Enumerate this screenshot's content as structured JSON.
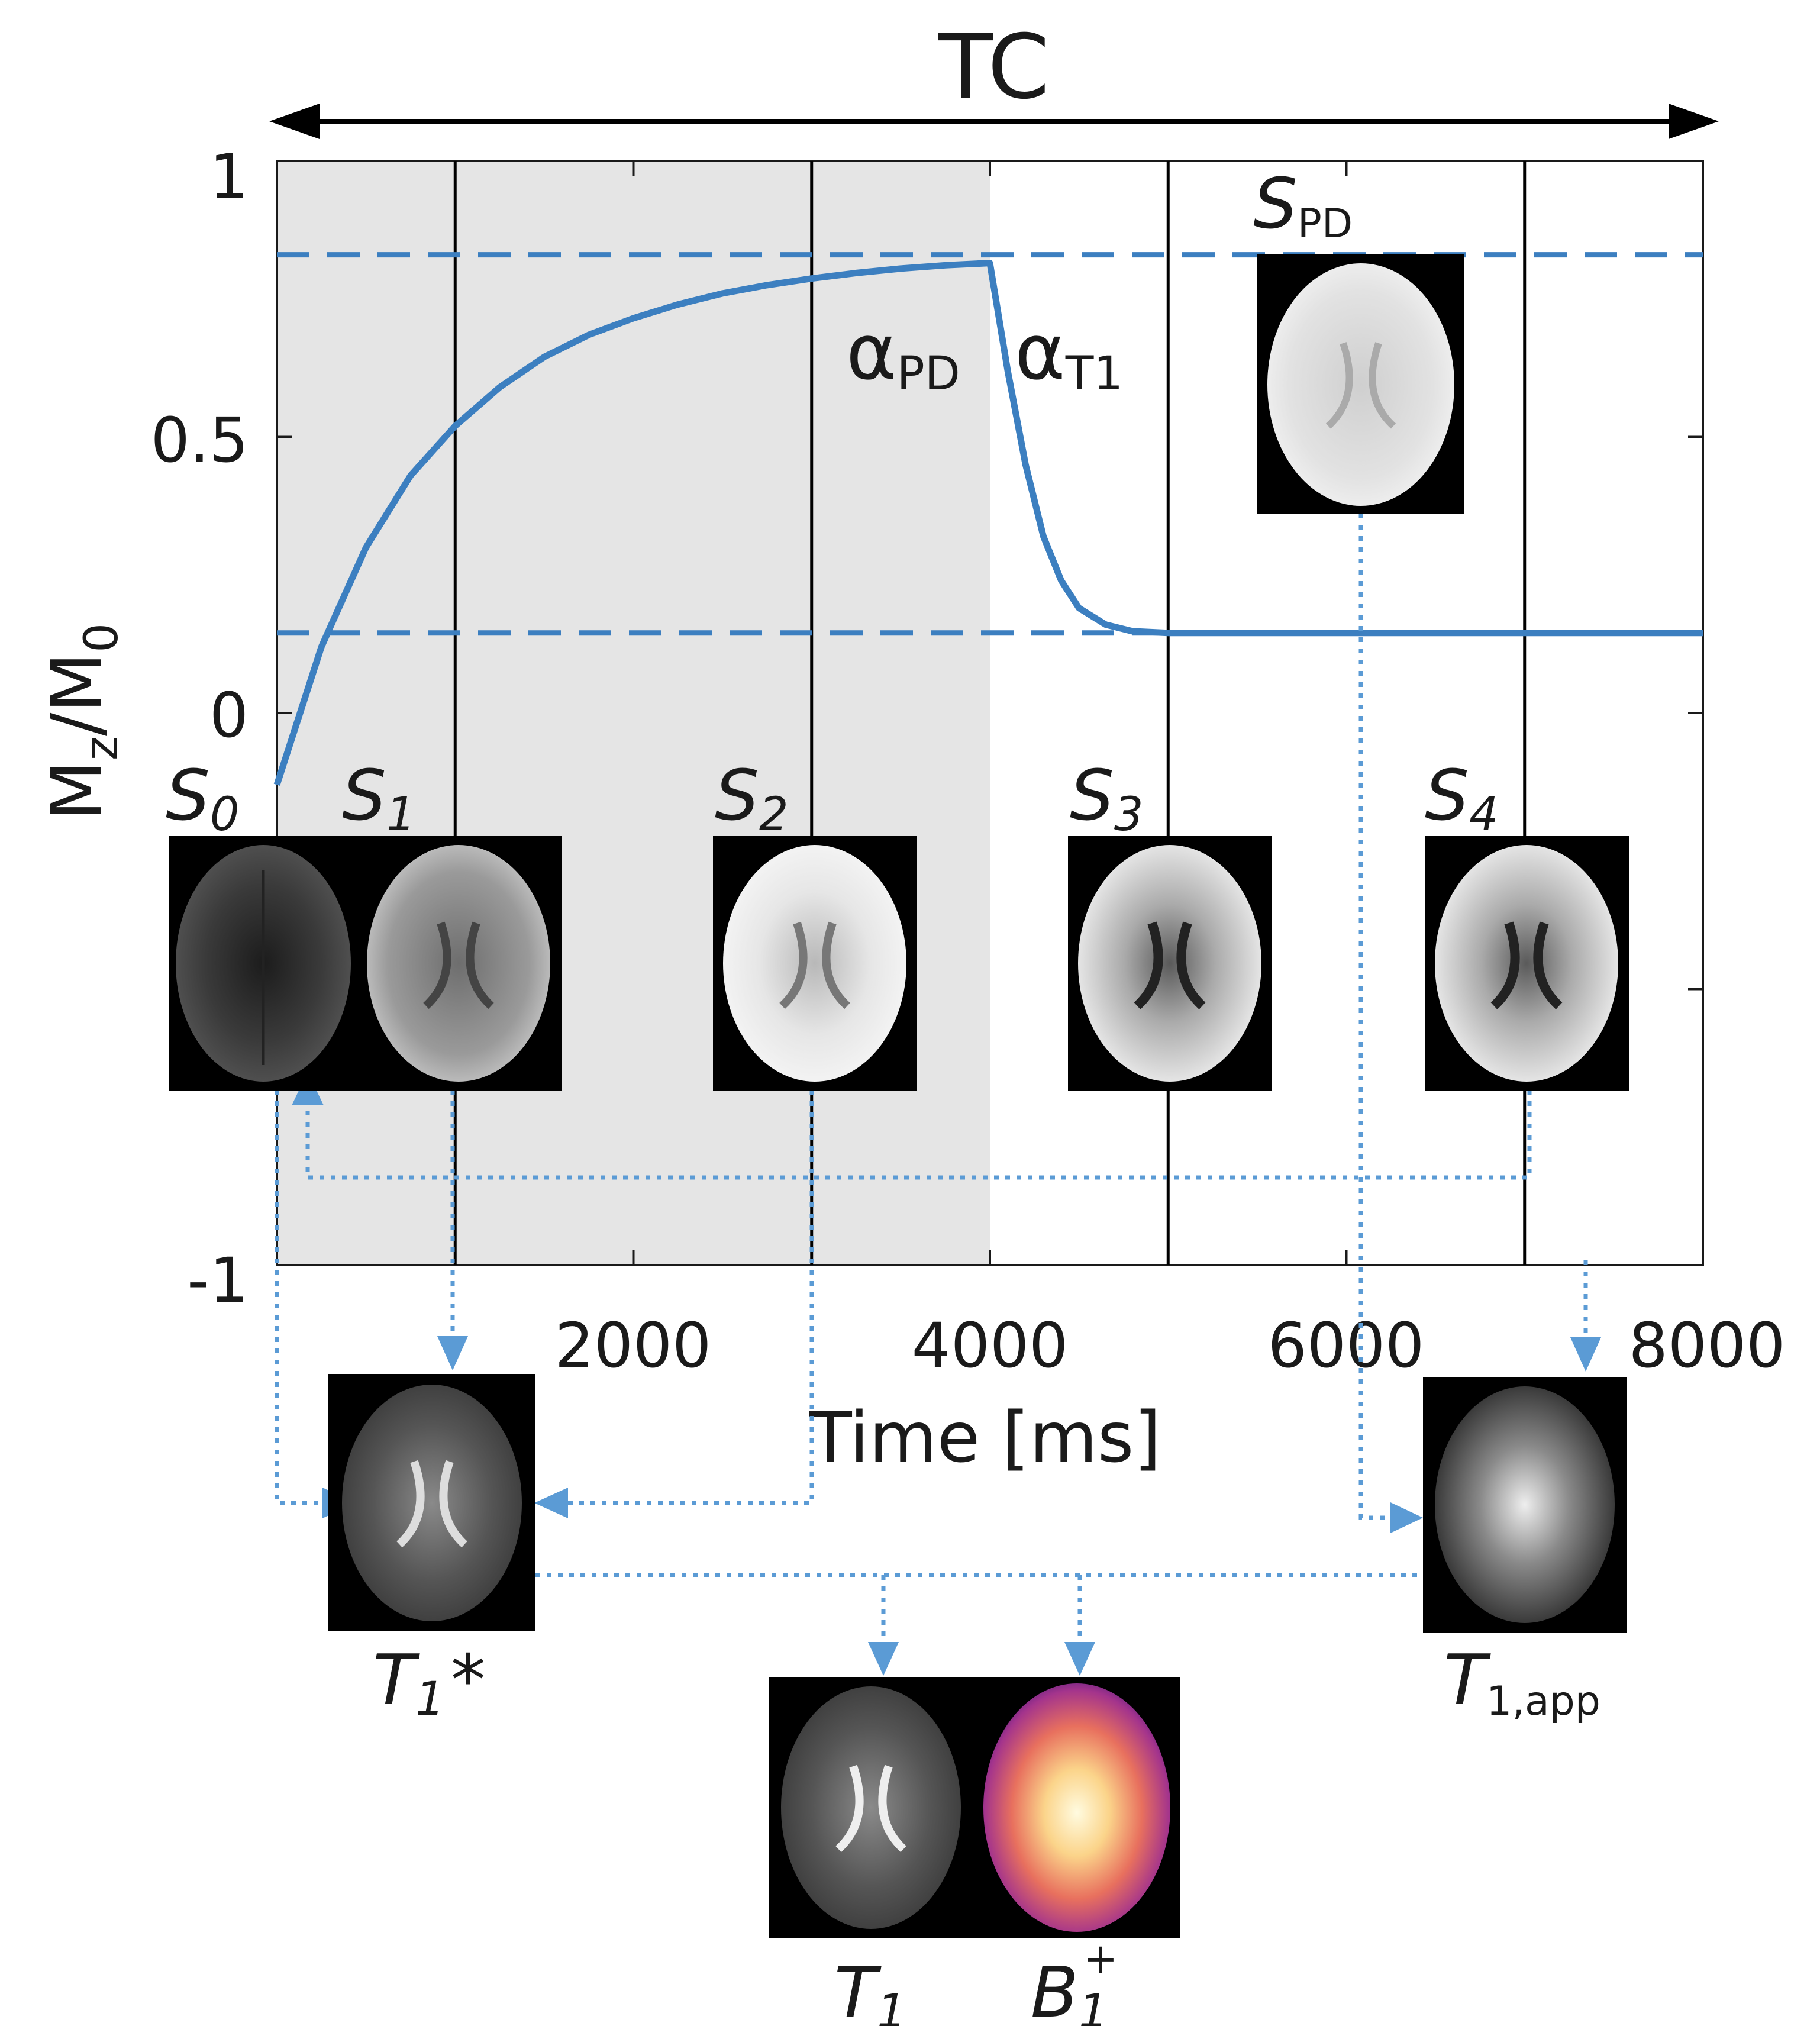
{
  "figure": {
    "top_label": "TC",
    "y_axis_label": "M",
    "y_axis_label_sub1": "z",
    "y_axis_label_mid": "/M",
    "y_axis_label_sub2": "0",
    "x_axis_label": "Time [ms]",
    "curve_color": "#3c7fc0",
    "arrow_color": "#5b9bd5",
    "shade_color": "#e5e5e5"
  },
  "chart_data": {
    "type": "line",
    "xlim": [
      0,
      8000
    ],
    "ylim": [
      -1,
      1
    ],
    "x_ticks": [
      "2000",
      "4000",
      "6000",
      "8000"
    ],
    "y_ticks": [
      "1",
      "0.5",
      "0",
      "-1"
    ],
    "shaded_interval": [
      0,
      4000
    ],
    "readout_times": [
      1000,
      3000,
      5000,
      7000
    ],
    "reference_levels": [
      0.83,
      0.145
    ],
    "series": [
      {
        "x": [
          0,
          250,
          500,
          750,
          1000,
          1250,
          1500,
          1750,
          2000,
          2250,
          2500,
          2750,
          3000,
          3250,
          3500,
          3750,
          4000,
          4100,
          4200,
          4300,
          4400,
          4500,
          4650,
          4800,
          5000,
          5500,
          6000,
          6500,
          7000,
          7500,
          8000
        ],
        "y": [
          -0.13,
          0.12,
          0.3,
          0.43,
          0.52,
          0.59,
          0.645,
          0.685,
          0.715,
          0.74,
          0.76,
          0.775,
          0.787,
          0.797,
          0.805,
          0.811,
          0.815,
          0.62,
          0.45,
          0.32,
          0.24,
          0.19,
          0.16,
          0.148,
          0.145,
          0.145,
          0.145,
          0.145,
          0.145,
          0.145,
          0.145
        ]
      }
    ]
  },
  "annotations": {
    "alpha_pd": "α",
    "alpha_pd_sub": "PD",
    "alpha_t1": "α",
    "alpha_t1_sub": "T1"
  },
  "images": {
    "s0": {
      "letter": "S",
      "sub": "0"
    },
    "s1": {
      "letter": "S",
      "sub": "1"
    },
    "s2": {
      "letter": "S",
      "sub": "2"
    },
    "s3": {
      "letter": "S",
      "sub": "3"
    },
    "s4": {
      "letter": "S",
      "sub": "4"
    },
    "spd": {
      "letter": "S",
      "sub": "PD"
    },
    "t1star": {
      "letter": "T",
      "sub": "1",
      "suffix": "*"
    },
    "t1app": {
      "letter": "T",
      "sub": "1,app"
    },
    "t1": {
      "letter": "T",
      "sub": "1"
    },
    "b1": {
      "letter": "B",
      "sub": "1",
      "sup": "+"
    }
  }
}
